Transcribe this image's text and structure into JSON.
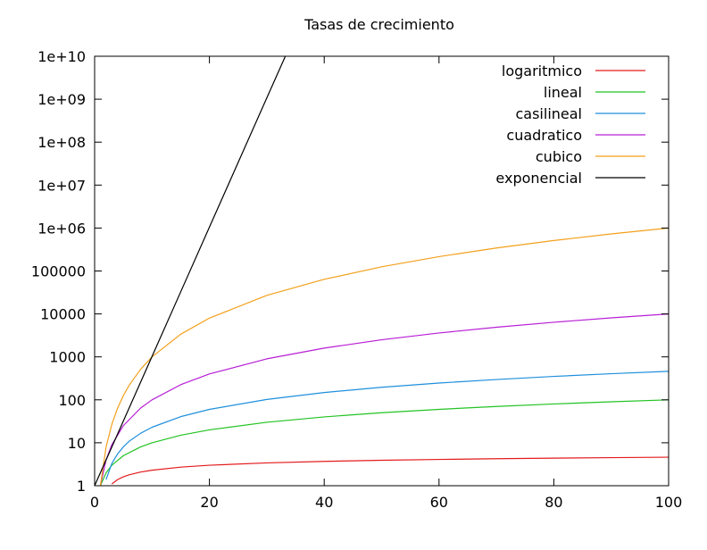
{
  "chart_data": {
    "type": "line",
    "title": "Tasas de crecimiento",
    "xlabel": "",
    "ylabel": "",
    "xlim": [
      0,
      100
    ],
    "ylim": [
      1,
      10000000000
    ],
    "yscale": "log",
    "grid": false,
    "legend_position": "top-right",
    "x_ticks": [
      0,
      20,
      40,
      60,
      80,
      100
    ],
    "y_ticks": [
      1,
      10,
      100,
      1000,
      10000,
      100000,
      1000000,
      10000000,
      100000000,
      1000000000,
      10000000000
    ],
    "x_tick_labels": [
      "0",
      "20",
      "40",
      "60",
      "80",
      "100"
    ],
    "y_tick_labels": [
      "1",
      "10",
      "100",
      "1000",
      "10000",
      "100000",
      "1e+06",
      "1e+07",
      "1e+08",
      "1e+09",
      "1e+10"
    ],
    "series": [
      {
        "name": "logaritmico",
        "color": "#e41a1c",
        "x": [
          3,
          4,
          5,
          6,
          8,
          10,
          15,
          20,
          30,
          40,
          50,
          60,
          70,
          80,
          90,
          100
        ],
        "y": [
          1.1,
          1.39,
          1.61,
          1.79,
          2.08,
          2.3,
          2.71,
          3.0,
          3.4,
          3.69,
          3.91,
          4.09,
          4.25,
          4.38,
          4.5,
          4.61
        ]
      },
      {
        "name": "lineal",
        "color": "#22c322",
        "x": [
          1,
          2,
          3,
          5,
          8,
          10,
          15,
          20,
          30,
          40,
          50,
          60,
          70,
          80,
          90,
          100
        ],
        "y": [
          1,
          2,
          3,
          5,
          8,
          10,
          15,
          20,
          30,
          40,
          50,
          60,
          70,
          80,
          90,
          100
        ]
      },
      {
        "name": "casilineal",
        "color": "#1f8fdc",
        "x": [
          2,
          3,
          4,
          5,
          6,
          8,
          10,
          15,
          20,
          30,
          40,
          50,
          60,
          70,
          80,
          90,
          100
        ],
        "y": [
          1.39,
          3.3,
          5.5,
          8.0,
          10.8,
          16.6,
          23,
          40.6,
          59.9,
          102,
          148,
          196,
          246,
          297,
          351,
          405,
          461
        ]
      },
      {
        "name": "cuadratico",
        "color": "#b81ed6",
        "x": [
          1,
          2,
          3,
          5,
          8,
          10,
          15,
          20,
          30,
          40,
          50,
          60,
          70,
          80,
          90,
          100
        ],
        "y": [
          1,
          4,
          9,
          25,
          64,
          100,
          225,
          400,
          900,
          1600,
          2500,
          3600,
          4900,
          6400,
          8100,
          10000
        ]
      },
      {
        "name": "cubico",
        "color": "#f2a01c",
        "x": [
          1,
          2,
          3,
          4,
          5,
          6,
          8,
          10,
          15,
          20,
          30,
          40,
          50,
          60,
          70,
          80,
          90,
          100
        ],
        "y": [
          1,
          8,
          27,
          64,
          125,
          216,
          512,
          1000,
          3375,
          8000,
          27000,
          64000,
          125000,
          216000,
          343000,
          512000,
          729000,
          1000000
        ]
      },
      {
        "name": "exponencial",
        "color": "#000000",
        "x": [
          0,
          5,
          10,
          15,
          20,
          25,
          30,
          33.2
        ],
        "y": [
          1,
          32,
          1024,
          32768,
          1048576,
          33554432,
          1073741824,
          9849232798
        ]
      }
    ]
  }
}
